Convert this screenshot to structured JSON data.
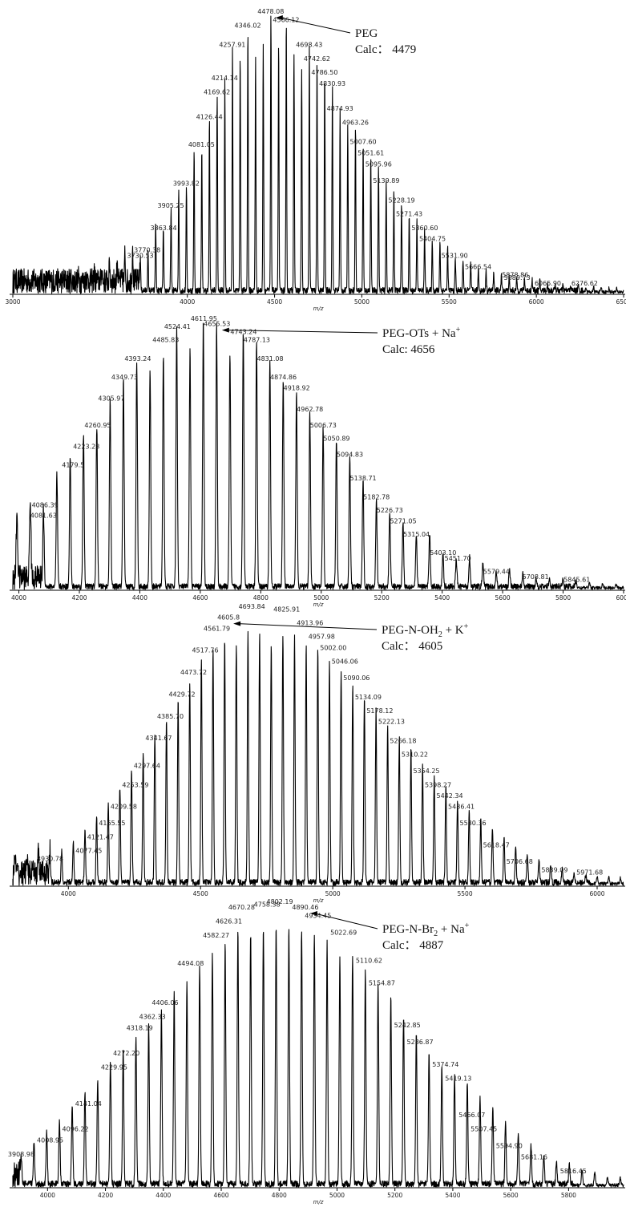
{
  "chart_data": [
    {
      "type": "line",
      "xlabel": "m/z",
      "xlim": [
        3000,
        6500
      ],
      "ylim": [
        0,
        100
      ],
      "x_ticks": [
        "3000",
        "4000",
        "4500",
        "5000",
        "5500",
        "6000",
        "6500"
      ],
      "x_tick_values": [
        3000,
        4000,
        4500,
        5000,
        5500,
        6000,
        6500
      ],
      "annotation": {
        "name": "PEG",
        "calc_text": "Calc： 4479",
        "target_mz": 4478.08
      },
      "peaks": [
        {
          "mz": 3730.53,
          "label": "3730.53",
          "intensity": 12
        },
        {
          "mz": 3770.38,
          "label": "3770.38",
          "intensity": 14
        },
        {
          "mz": 3863.84,
          "label": "3863.84",
          "intensity": 22
        },
        {
          "mz": 3905.25,
          "label": "3905.25",
          "intensity": 30
        },
        {
          "mz": 3993.82,
          "label": "3993.82",
          "intensity": 38
        },
        {
          "mz": 4081.05,
          "label": "4081.05",
          "intensity": 52
        },
        {
          "mz": 4126.44,
          "label": "4126.44",
          "intensity": 62
        },
        {
          "mz": 4169.62,
          "label": "4169.62",
          "intensity": 71
        },
        {
          "mz": 4214.14,
          "label": "4214.14",
          "intensity": 76
        },
        {
          "mz": 4257.91,
          "label": "4257.91",
          "intensity": 88
        },
        {
          "mz": 4346.02,
          "label": "4346.02",
          "intensity": 95
        },
        {
          "mz": 4478.08,
          "label": "4478.08",
          "intensity": 100
        },
        {
          "mz": 4566.12,
          "label": "4566.12",
          "intensity": 97
        },
        {
          "mz": 4698.43,
          "label": "4698.43",
          "intensity": 88
        },
        {
          "mz": 4742.62,
          "label": "4742.62",
          "intensity": 83
        },
        {
          "mz": 4786.5,
          "label": "4786.50",
          "intensity": 78
        },
        {
          "mz": 4830.93,
          "label": "4830.93",
          "intensity": 74
        },
        {
          "mz": 4874.93,
          "label": "4874.93",
          "intensity": 65
        },
        {
          "mz": 4963.26,
          "label": "4963.26",
          "intensity": 60
        },
        {
          "mz": 5007.6,
          "label": "5007.60",
          "intensity": 53
        },
        {
          "mz": 5051.61,
          "label": "5051.61",
          "intensity": 49
        },
        {
          "mz": 5095.96,
          "label": "5095.96",
          "intensity": 45
        },
        {
          "mz": 5139.89,
          "label": "5139.89",
          "intensity": 39
        },
        {
          "mz": 5228.19,
          "label": "5228.19",
          "intensity": 32
        },
        {
          "mz": 5271.43,
          "label": "5271.43",
          "intensity": 27
        },
        {
          "mz": 5360.6,
          "label": "5360.60",
          "intensity": 22
        },
        {
          "mz": 5404.75,
          "label": "5404.75",
          "intensity": 18
        },
        {
          "mz": 5531.9,
          "label": "5531.90",
          "intensity": 12
        },
        {
          "mz": 5666.54,
          "label": "5666.54",
          "intensity": 8
        },
        {
          "mz": 5878.86,
          "label": "5878.86",
          "intensity": 5
        },
        {
          "mz": 5889.73,
          "label": "5889.73",
          "intensity": 4
        },
        {
          "mz": 6065.9,
          "label": "6065.90",
          "intensity": 2
        },
        {
          "mz": 6276.62,
          "label": "6276.62",
          "intensity": 2
        }
      ]
    },
    {
      "type": "line",
      "xlabel": "m/z",
      "xlim": [
        3980,
        6000
      ],
      "ylim": [
        0,
        100
      ],
      "x_ticks": [
        "4000",
        "4200",
        "4400",
        "4600",
        "4800",
        "5000",
        "5200",
        "5400",
        "5600",
        "5800",
        "6000"
      ],
      "x_tick_values": [
        4000,
        4200,
        4400,
        4600,
        4800,
        5000,
        5200,
        5400,
        5600,
        5800,
        6000
      ],
      "annotation": {
        "name": "PEG-OTs + Na",
        "superscript": "+",
        "calc_text": "Calc: 4656",
        "target_mz": 4655.53
      },
      "peaks": [
        {
          "mz": 4081.63,
          "label": "4081.63",
          "intensity": 26
        },
        {
          "mz": 4086.39,
          "label": "4086.39",
          "intensity": 30
        },
        {
          "mz": 4179.5,
          "label": "4179.5",
          "intensity": 45
        },
        {
          "mz": 4223.23,
          "label": "4223.23",
          "intensity": 52
        },
        {
          "mz": 4260.95,
          "label": "4260.95",
          "intensity": 60
        },
        {
          "mz": 4305.97,
          "label": "4305.97",
          "intensity": 70
        },
        {
          "mz": 4349.73,
          "label": "4349.73",
          "intensity": 78
        },
        {
          "mz": 4393.24,
          "label": "4393.24",
          "intensity": 85
        },
        {
          "mz": 4485.83,
          "label": "4485.83",
          "intensity": 92
        },
        {
          "mz": 4524.41,
          "label": "4524.41",
          "intensity": 97
        },
        {
          "mz": 4611.95,
          "label": "4611.95",
          "intensity": 100
        },
        {
          "mz": 4655.53,
          "label": "4655.53",
          "intensity": 98
        },
        {
          "mz": 4743.24,
          "label": "4743.24",
          "intensity": 95
        },
        {
          "mz": 4787.13,
          "label": "4787.13",
          "intensity": 92
        },
        {
          "mz": 4831.08,
          "label": "4831.08",
          "intensity": 85
        },
        {
          "mz": 4874.86,
          "label": "4874.86",
          "intensity": 78
        },
        {
          "mz": 4918.92,
          "label": "4918.92",
          "intensity": 74
        },
        {
          "mz": 4962.78,
          "label": "4962.78",
          "intensity": 66
        },
        {
          "mz": 5006.73,
          "label": "5006.73",
          "intensity": 60
        },
        {
          "mz": 5050.89,
          "label": "5050.89",
          "intensity": 55
        },
        {
          "mz": 5094.83,
          "label": "5094.83",
          "intensity": 49
        },
        {
          "mz": 5138.71,
          "label": "5138.71",
          "intensity": 40
        },
        {
          "mz": 5182.78,
          "label": "5182.78",
          "intensity": 33
        },
        {
          "mz": 5226.73,
          "label": "5226.73",
          "intensity": 28
        },
        {
          "mz": 5271.05,
          "label": "5271.05",
          "intensity": 24
        },
        {
          "mz": 5315.04,
          "label": "5315.04",
          "intensity": 19
        },
        {
          "mz": 5403.1,
          "label": "5403.10",
          "intensity": 12
        },
        {
          "mz": 5451.7,
          "label": "5451.70",
          "intensity": 10
        },
        {
          "mz": 5579.44,
          "label": "5579.44",
          "intensity": 5
        },
        {
          "mz": 5708.81,
          "label": "5708.81",
          "intensity": 3
        },
        {
          "mz": 5845.61,
          "label": "5845.61",
          "intensity": 2
        }
      ]
    },
    {
      "type": "line",
      "xlabel": "m/z",
      "xlim": [
        3790,
        6100
      ],
      "ylim": [
        0,
        100
      ],
      "x_ticks": [
        "4000",
        "4500",
        "5000",
        "5500",
        "6000"
      ],
      "x_tick_values": [
        4000,
        4500,
        5000,
        5500,
        6000
      ],
      "annotation": {
        "name": "PEG-N-OH",
        "subscript": "2",
        "suffix": " + K",
        "superscript": "+",
        "calc_text": "Calc： 4605",
        "target_mz": 4605.8
      },
      "peaks": [
        {
          "mz": 3930.78,
          "label": "3930.78",
          "intensity": 8
        },
        {
          "mz": 4077.45,
          "label": "4077.45",
          "intensity": 11
        },
        {
          "mz": 4121.47,
          "label": "4121.47",
          "intensity": 16
        },
        {
          "mz": 4165.55,
          "label": "4165.55",
          "intensity": 21
        },
        {
          "mz": 4209.58,
          "label": "4209.58",
          "intensity": 27
        },
        {
          "mz": 4253.59,
          "label": "4253.59",
          "intensity": 35
        },
        {
          "mz": 4297.64,
          "label": "4297.64",
          "intensity": 42
        },
        {
          "mz": 4341.67,
          "label": "4341.67",
          "intensity": 52
        },
        {
          "mz": 4385.7,
          "label": "4385.70",
          "intensity": 60
        },
        {
          "mz": 4429.72,
          "label": "4429.72",
          "intensity": 68
        },
        {
          "mz": 4473.72,
          "label": "4473.72",
          "intensity": 76
        },
        {
          "mz": 4517.76,
          "label": "4517.76",
          "intensity": 84
        },
        {
          "mz": 4561.79,
          "label": "4561.79",
          "intensity": 92
        },
        {
          "mz": 4605.8,
          "label": "4605.8",
          "intensity": 96
        },
        {
          "mz": 4693.84,
          "label": "4693.84",
          "intensity": 100
        },
        {
          "mz": 4825.91,
          "label": "4825.91",
          "intensity": 99
        },
        {
          "mz": 4913.96,
          "label": "4913.96",
          "intensity": 94
        },
        {
          "mz": 4957.98,
          "label": "4957.98",
          "intensity": 89
        },
        {
          "mz": 5002.0,
          "label": "5002.00",
          "intensity": 85
        },
        {
          "mz": 5046.06,
          "label": "5046.06",
          "intensity": 80
        },
        {
          "mz": 5090.06,
          "label": "5090.06",
          "intensity": 74
        },
        {
          "mz": 5134.09,
          "label": "5134.09",
          "intensity": 67
        },
        {
          "mz": 5178.12,
          "label": "5178.12",
          "intensity": 62
        },
        {
          "mz": 5222.13,
          "label": "5222.13",
          "intensity": 58
        },
        {
          "mz": 5266.18,
          "label": "5266.18",
          "intensity": 51
        },
        {
          "mz": 5310.22,
          "label": "5310.22",
          "intensity": 46
        },
        {
          "mz": 5354.25,
          "label": "5354.25",
          "intensity": 40
        },
        {
          "mz": 5398.27,
          "label": "5398.27",
          "intensity": 35
        },
        {
          "mz": 5442.34,
          "label": "5442.34",
          "intensity": 31
        },
        {
          "mz": 5486.41,
          "label": "5486.41",
          "intensity": 27
        },
        {
          "mz": 5530.36,
          "label": "5530.36",
          "intensity": 21
        },
        {
          "mz": 5618.47,
          "label": "5618.47",
          "intensity": 13
        },
        {
          "mz": 5706.68,
          "label": "5706.68",
          "intensity": 7
        },
        {
          "mz": 5839.09,
          "label": "5839.09",
          "intensity": 4
        },
        {
          "mz": 5971.68,
          "label": "5971.68",
          "intensity": 3
        }
      ]
    },
    {
      "type": "line",
      "xlabel": "m/z",
      "xlim": [
        3880,
        5990
      ],
      "ylim": [
        0,
        100
      ],
      "x_ticks": [
        "4000",
        "4200",
        "4400",
        "4600",
        "4800",
        "5000",
        "5200",
        "5400",
        "5600",
        "5800"
      ],
      "x_tick_values": [
        4000,
        4200,
        4400,
        4600,
        4800,
        5000,
        5200,
        5400,
        5600,
        5800
      ],
      "annotation": {
        "name": "PEG-N-Br",
        "subscript": "2",
        "suffix": " + Na",
        "superscript": "+",
        "calc_text": "Calc： 4887",
        "target_mz": 4890.46
      },
      "peaks": [
        {
          "mz": 3908.98,
          "label": "3908.98",
          "intensity": 10
        },
        {
          "mz": 4008.95,
          "label": "4008.95",
          "intensity": 15
        },
        {
          "mz": 4096.22,
          "label": "4096.22",
          "intensity": 19
        },
        {
          "mz": 4141.04,
          "label": "4141.04",
          "intensity": 28
        },
        {
          "mz": 4229.95,
          "label": "4229.95",
          "intensity": 41
        },
        {
          "mz": 4272.2,
          "label": "4272.20",
          "intensity": 46
        },
        {
          "mz": 4318.19,
          "label": "4318.19",
          "intensity": 55
        },
        {
          "mz": 4362.33,
          "label": "4362.33",
          "intensity": 59
        },
        {
          "mz": 4406.06,
          "label": "4406.06",
          "intensity": 64
        },
        {
          "mz": 4494.08,
          "label": "4494.08",
          "intensity": 78
        },
        {
          "mz": 4582.27,
          "label": "4582.27",
          "intensity": 88
        },
        {
          "mz": 4626.31,
          "label": "4626.31",
          "intensity": 93
        },
        {
          "mz": 4670.28,
          "label": "4670.28",
          "intensity": 98
        },
        {
          "mz": 4758.38,
          "label": "4758.38",
          "intensity": 99
        },
        {
          "mz": 4802.19,
          "label": "4802.19",
          "intensity": 100
        },
        {
          "mz": 4890.46,
          "label": "4890.46",
          "intensity": 98
        },
        {
          "mz": 4934.45,
          "label": "4934.45",
          "intensity": 95
        },
        {
          "mz": 5022.69,
          "label": "5022.69",
          "intensity": 89
        },
        {
          "mz": 5110.62,
          "label": "5110.62",
          "intensity": 79
        },
        {
          "mz": 5154.87,
          "label": "5154.87",
          "intensity": 71
        },
        {
          "mz": 5242.85,
          "label": "5242.85",
          "intensity": 56
        },
        {
          "mz": 5286.87,
          "label": "5286.87",
          "intensity": 50
        },
        {
          "mz": 5374.74,
          "label": "5374.74",
          "intensity": 42
        },
        {
          "mz": 5419.13,
          "label": "5419.13",
          "intensity": 37
        },
        {
          "mz": 5466.07,
          "label": "5466.07",
          "intensity": 24
        },
        {
          "mz": 5507.45,
          "label": "5507.45",
          "intensity": 19
        },
        {
          "mz": 5594.9,
          "label": "5594.90",
          "intensity": 13
        },
        {
          "mz": 5681.16,
          "label": "5681.16",
          "intensity": 9
        },
        {
          "mz": 5816.45,
          "label": "5816.45",
          "intensity": 4
        }
      ]
    }
  ]
}
